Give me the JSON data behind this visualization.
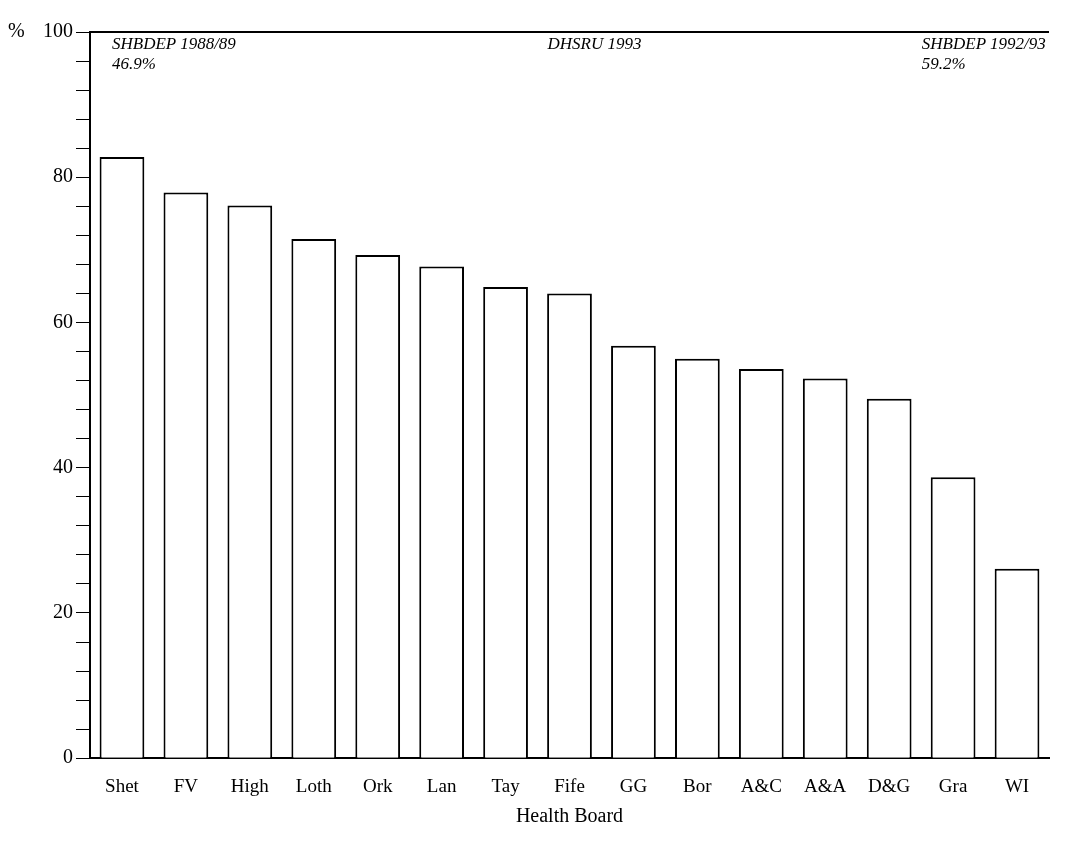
{
  "chart_data": {
    "type": "bar",
    "xlabel": "Health Board",
    "ylabel": "%",
    "categories": [
      "Shet",
      "FV",
      "High",
      "Loth",
      "Ork",
      "Lan",
      "Tay",
      "Fife",
      "GG",
      "Bor",
      "A&C",
      "A&A",
      "D&G",
      "Gra",
      "WI"
    ],
    "values": [
      82.8,
      77.9,
      76.1,
      71.5,
      69.3,
      67.7,
      64.9,
      64.0,
      56.8,
      55.0,
      53.6,
      52.3,
      49.5,
      38.7,
      26.1
    ],
    "color": "#ffffff",
    "ylim": [
      0,
      100
    ],
    "yticks": [
      0,
      {
        "value": 4,
        "label": null
      },
      {
        "value": 8,
        "label": null
      },
      {
        "value": 12,
        "label": null
      },
      {
        "value": 16,
        "label": null
      },
      20,
      {
        "value": 24,
        "label": null
      },
      {
        "value": 28,
        "label": null
      },
      {
        "value": 32,
        "label": null
      },
      {
        "value": 36,
        "label": null
      },
      40,
      {
        "value": 44,
        "label": null
      },
      {
        "value": 48,
        "label": null
      },
      {
        "value": 52,
        "label": null
      },
      {
        "value": 56,
        "label": null
      },
      60,
      {
        "value": 64,
        "label": null
      },
      {
        "value": 68,
        "label": null
      },
      {
        "value": 72,
        "label": null
      },
      {
        "value": 76,
        "label": null
      },
      80,
      {
        "value": 84,
        "label": null
      },
      {
        "value": 88,
        "label": null
      },
      {
        "value": 92,
        "label": null
      },
      {
        "value": 96,
        "label": null
      },
      100
    ],
    "annotations": [
      "SHBDEP 1988/89\n46.9%",
      "DHSRU 1993",
      "SHBDEP 1992/93\n59.2%"
    ],
    "grid": false,
    "legend": false
  }
}
